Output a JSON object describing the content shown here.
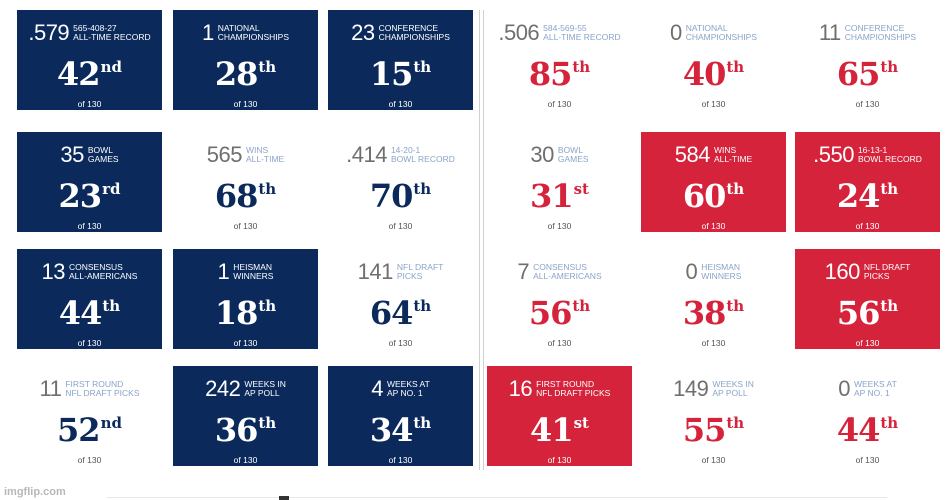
{
  "left_grid": [
    {
      "theme": "navy",
      "big": ".579",
      "small": "565-408-27\nALL-TIME RECORD",
      "rank": "42",
      "suffix": "nd",
      "of": "of 130"
    },
    {
      "theme": "navy",
      "big": "1",
      "small": "NATIONAL\nCHAMPIONSHIPS",
      "rank": "28",
      "suffix": "th",
      "of": "of 130"
    },
    {
      "theme": "navy",
      "big": "23",
      "small": "CONFERENCE\nCHAMPIONSHIPS",
      "rank": "15",
      "suffix": "th",
      "of": "of 130"
    },
    {
      "theme": "navy",
      "big": "35",
      "small": "BOWL\nGAMES",
      "rank": "23",
      "suffix": "rd",
      "of": "of 130"
    },
    {
      "theme": "plain-navy",
      "big": "565",
      "small": "WINS\nALL-TIME",
      "rank": "68",
      "suffix": "th",
      "of": "of 130"
    },
    {
      "theme": "plain-navy",
      "big": ".414",
      "small": "14-20-1\nBOWL RECORD",
      "rank": "70",
      "suffix": "th",
      "of": "of 130"
    },
    {
      "theme": "navy",
      "big": "13",
      "small": "CONSENSUS\nALL-AMERICANS",
      "rank": "44",
      "suffix": "th",
      "of": "of 130"
    },
    {
      "theme": "navy",
      "big": "1",
      "small": "HEISMAN\nWINNERS",
      "rank": "18",
      "suffix": "th",
      "of": "of 130"
    },
    {
      "theme": "plain-navy",
      "big": "141",
      "small": "NFL DRAFT\nPICKS",
      "rank": "64",
      "suffix": "th",
      "of": "of 130"
    },
    {
      "theme": "plain-navy",
      "big": "11",
      "small": "FIRST ROUND\nNFL DRAFT PICKS",
      "rank": "52",
      "suffix": "nd",
      "of": "of 130"
    },
    {
      "theme": "navy",
      "big": "242",
      "small": "WEEKS IN\nAP POLL",
      "rank": "36",
      "suffix": "th",
      "of": "of 130"
    },
    {
      "theme": "navy",
      "big": "4",
      "small": "WEEKS AT\nAP NO. 1",
      "rank": "34",
      "suffix": "th",
      "of": "of 130"
    }
  ],
  "right_grid": [
    {
      "theme": "plain-red",
      "big": ".506",
      "small": "584-569-55\nALL-TIME RECORD",
      "rank": "85",
      "suffix": "th",
      "of": "of 130"
    },
    {
      "theme": "plain-red",
      "big": "0",
      "small": "NATIONAL\nCHAMPIONSHIPS",
      "rank": "40",
      "suffix": "th",
      "of": "of 130"
    },
    {
      "theme": "plain-red",
      "big": "11",
      "small": "CONFERENCE\nCHAMPIONSHIPS",
      "rank": "65",
      "suffix": "th",
      "of": "of 130"
    },
    {
      "theme": "plain-red",
      "big": "30",
      "small": "BOWL\nGAMES",
      "rank": "31",
      "suffix": "st",
      "of": "of 130"
    },
    {
      "theme": "red",
      "big": "584",
      "small": "WINS\nALL-TIME",
      "rank": "60",
      "suffix": "th",
      "of": "of 130"
    },
    {
      "theme": "red",
      "big": ".550",
      "small": "16-13-1\nBOWL RECORD",
      "rank": "24",
      "suffix": "th",
      "of": "of 130"
    },
    {
      "theme": "plain-red",
      "big": "7",
      "small": "CONSENSUS\nALL-AMERICANS",
      "rank": "56",
      "suffix": "th",
      "of": "of 130"
    },
    {
      "theme": "plain-red",
      "big": "0",
      "small": "HEISMAN\nWINNERS",
      "rank": "38",
      "suffix": "th",
      "of": "of 130"
    },
    {
      "theme": "red",
      "big": "160",
      "small": "NFL DRAFT\nPICKS",
      "rank": "56",
      "suffix": "th",
      "of": "of 130"
    },
    {
      "theme": "red",
      "big": "16",
      "small": "FIRST ROUND\nNFL DRAFT PICKS",
      "rank": "41",
      "suffix": "st",
      "of": "of 130"
    },
    {
      "theme": "plain-red",
      "big": "149",
      "small": "WEEKS IN\nAP POLL",
      "rank": "55",
      "suffix": "th",
      "of": "of 130"
    },
    {
      "theme": "plain-red",
      "big": "0",
      "small": "WEEKS AT\nAP NO. 1",
      "rank": "44",
      "suffix": "th",
      "of": "of 130"
    }
  ],
  "colors": {
    "navy": "#0b2a5b",
    "red": "#d5233b",
    "label_blue": "#8aa4c8"
  },
  "watermark": "imgflip.com"
}
